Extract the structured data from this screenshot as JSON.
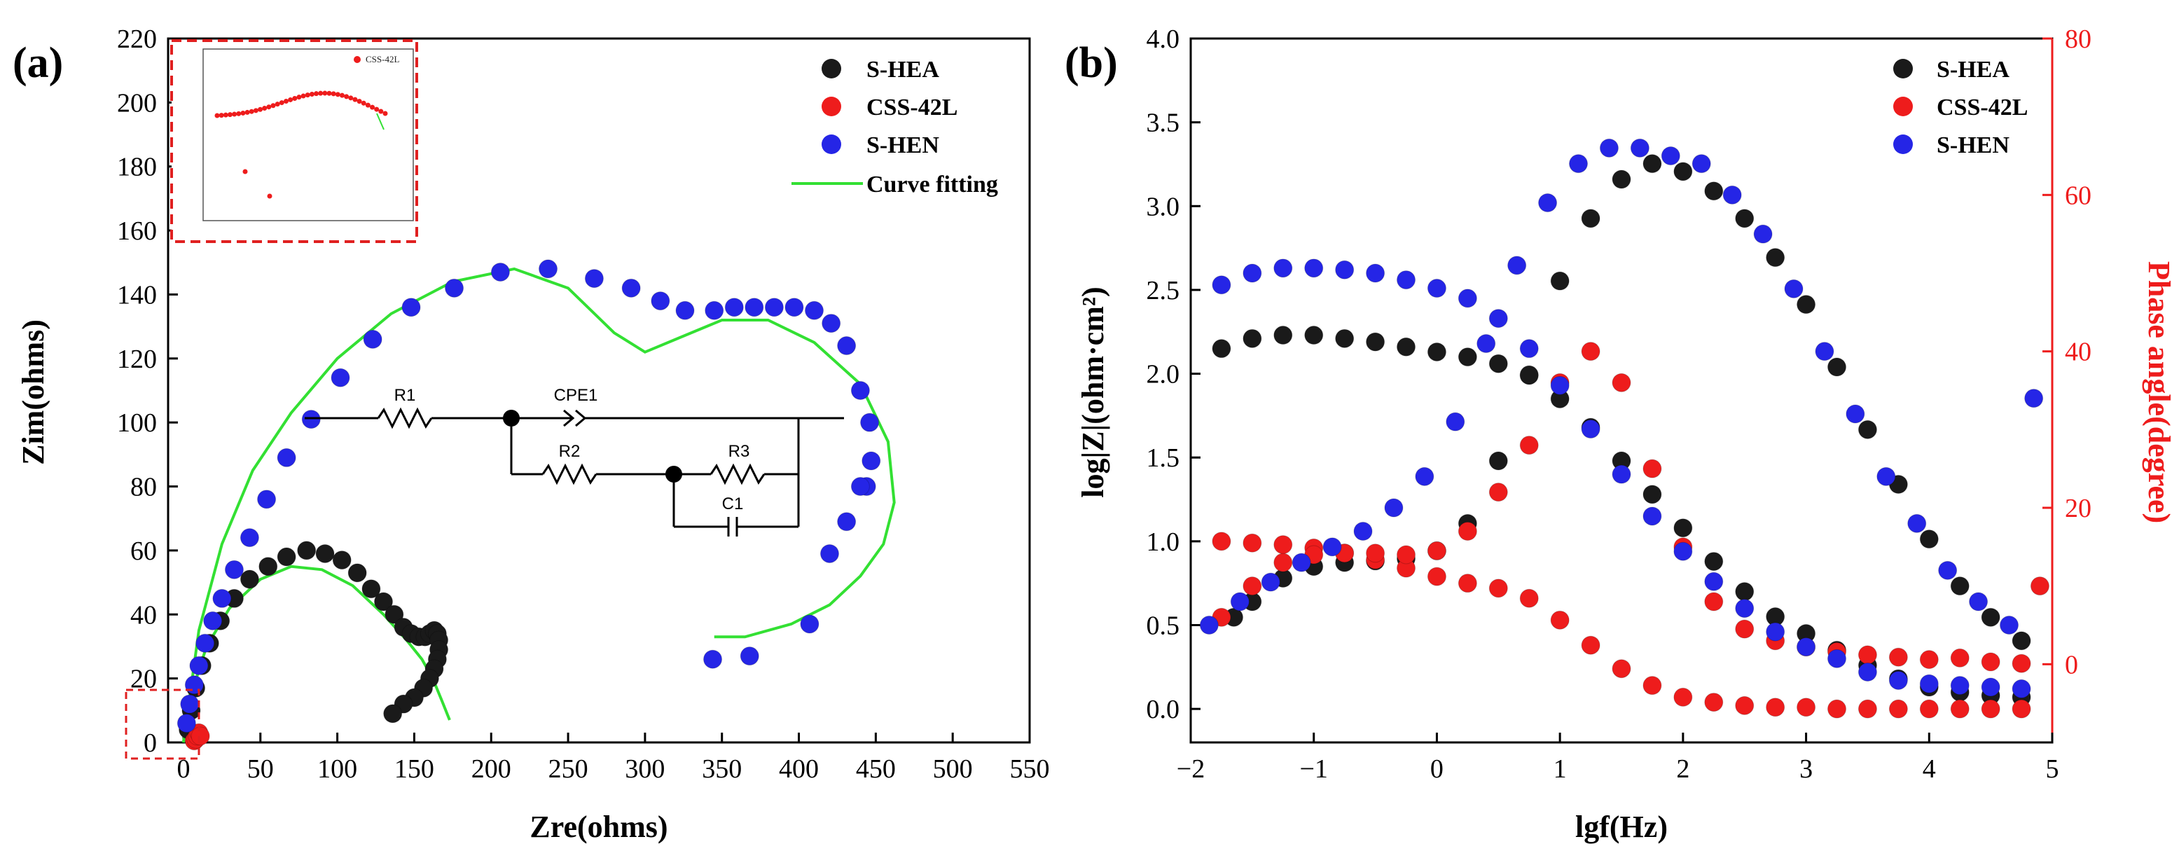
{
  "colors": {
    "s_hea": "#1a1a1a",
    "css_42l": "#ee1c1c",
    "s_hen": "#2525e6",
    "fit": "#33e033",
    "inset_border": "#e02020",
    "phase_axis": "#ee1c1c"
  },
  "panels": {
    "a": {
      "label": "(a)"
    },
    "b": {
      "label": "(b)"
    }
  },
  "circuit": {
    "r1": "R1",
    "cpe1": "CPE1",
    "r2": "R2",
    "r3": "R3",
    "c1": "C1"
  },
  "inset": {
    "legend": "CSS-42L"
  },
  "chart_data": [
    {
      "type": "scatter",
      "panel": "(a)",
      "xlabel": "Zre(ohms)",
      "ylabel": "Zim(ohms)",
      "xlim": [
        -10,
        550
      ],
      "ylim": [
        0,
        220
      ],
      "xticks": [
        0,
        50,
        100,
        150,
        200,
        250,
        300,
        350,
        400,
        450,
        500,
        550
      ],
      "yticks": [
        0,
        20,
        40,
        60,
        80,
        100,
        120,
        140,
        160,
        180,
        200,
        220
      ],
      "legend_position": "top-right",
      "series": [
        {
          "name": "S-HEA",
          "color": "#1a1a1a",
          "x": [
            3,
            5,
            8,
            12,
            17,
            24,
            33,
            43,
            55,
            67,
            80,
            92,
            103,
            113,
            122,
            130,
            137,
            143,
            148,
            153,
            157,
            160,
            163,
            165,
            166,
            166,
            165,
            163,
            160,
            156,
            150,
            143,
            136
          ],
          "y": [
            4,
            10,
            17,
            24,
            31,
            38,
            45,
            51,
            55,
            58,
            60,
            59,
            57,
            53,
            48,
            44,
            40,
            36,
            34,
            33,
            33,
            34,
            35,
            34,
            32,
            29,
            26,
            23,
            20,
            17,
            14,
            12,
            9
          ]
        },
        {
          "name": "CSS-42L",
          "color": "#ee1c1c",
          "x": [
            7,
            8,
            9,
            10,
            11
          ],
          "y": [
            0.5,
            1,
            2,
            3,
            2
          ]
        },
        {
          "name": "S-HEN",
          "color": "#2525e6",
          "x": [
            2,
            4,
            7,
            10,
            14,
            19,
            25,
            33,
            43,
            54,
            67,
            83,
            102,
            123,
            148,
            176,
            206,
            237,
            267,
            291,
            310,
            326,
            345,
            358,
            371,
            384,
            397,
            410,
            421,
            431,
            440,
            446,
            447,
            444,
            440,
            431,
            420,
            407,
            368,
            344
          ],
          "y": [
            6,
            12,
            18,
            24,
            31,
            38,
            45,
            54,
            64,
            76,
            89,
            101,
            114,
            126,
            136,
            142,
            147,
            148,
            145,
            142,
            138,
            135,
            135,
            136,
            136,
            136,
            136,
            135,
            131,
            124,
            110,
            100,
            88,
            80,
            80,
            69,
            59,
            37,
            27,
            26
          ]
        },
        {
          "name": "Curve fitting",
          "color": "#33e033",
          "kind": "line",
          "x": [
            0,
            5,
            15,
            30,
            50,
            70,
            90,
            110,
            130,
            145,
            155,
            162,
            168,
            173
          ],
          "y": [
            0,
            15,
            30,
            42,
            51,
            55,
            54,
            49,
            40,
            32,
            26,
            20,
            13,
            7
          ]
        },
        {
          "name": "Curve fitting",
          "color": "#33e033",
          "kind": "line",
          "x": [
            0,
            10,
            25,
            45,
            70,
            100,
            135,
            175,
            215,
            250,
            280,
            300,
            320,
            350,
            380,
            410,
            440,
            458,
            462,
            455,
            440,
            420,
            395,
            365,
            345
          ],
          "y": [
            0,
            35,
            62,
            85,
            103,
            120,
            134,
            144,
            148,
            142,
            128,
            122,
            126,
            132,
            132,
            125,
            112,
            94,
            75,
            62,
            52,
            43,
            37,
            33,
            33
          ]
        }
      ]
    },
    {
      "type": "scatter",
      "panel": "(b)",
      "xlabel": "lgf(Hz)",
      "ylabel": "log|Z|(ohm·cm²)",
      "y2label": "Phase angle(degree)",
      "xlim": [
        -2,
        5
      ],
      "ylim": [
        -0.2,
        4.0
      ],
      "y2lim": [
        -10,
        80
      ],
      "xticks": [
        -2,
        -1,
        0,
        1,
        2,
        3,
        4,
        5
      ],
      "yticks": [
        0.0,
        0.5,
        1.0,
        1.5,
        2.0,
        2.5,
        3.0,
        3.5,
        4.0
      ],
      "y2ticks": [
        0,
        20,
        40,
        60,
        80
      ],
      "legend_position": "top-right",
      "series": [
        {
          "name": "S-HEA",
          "color": "#1a1a1a",
          "axis": "left",
          "x": [
            -1.75,
            -1.5,
            -1.25,
            -1.0,
            -0.75,
            -0.5,
            -0.25,
            0.0,
            0.25,
            0.5,
            0.75,
            1.0,
            1.25,
            1.5,
            1.75,
            2.0,
            2.25,
            2.5,
            2.75,
            3.0,
            3.25,
            3.5,
            3.75,
            4.0,
            4.25,
            4.5,
            4.75
          ],
          "y": [
            2.15,
            2.21,
            2.23,
            2.23,
            2.21,
            2.19,
            2.16,
            2.13,
            2.1,
            2.06,
            1.99,
            1.85,
            1.68,
            1.48,
            1.28,
            1.08,
            0.88,
            0.7,
            0.55,
            0.45,
            0.35,
            0.26,
            0.18,
            0.13,
            0.1,
            0.08,
            0.07
          ]
        },
        {
          "name": "S-HEA",
          "color": "#1a1a1a",
          "axis": "right",
          "x": [
            -1.65,
            -1.5,
            -1.25,
            -1.0,
            -0.75,
            -0.5,
            -0.25,
            0.0,
            0.25,
            0.5,
            0.75,
            1.0,
            1.25,
            1.5,
            1.75,
            2.0,
            2.25,
            2.5,
            2.75,
            3.0,
            3.25,
            3.5,
            3.75,
            4.0,
            4.25,
            4.5,
            4.75
          ],
          "y": [
            6,
            8,
            11,
            12.5,
            13,
            13.2,
            13.5,
            14.5,
            18,
            26,
            37,
            49,
            57,
            62,
            64,
            63,
            60.5,
            57,
            52,
            46,
            38,
            30,
            23,
            16,
            10,
            6,
            3
          ]
        },
        {
          "name": "CSS-42L",
          "color": "#ee1c1c",
          "axis": "left",
          "x": [
            -1.75,
            -1.5,
            -1.25,
            -1.0,
            -0.75,
            -0.5,
            -0.25,
            0.0,
            0.25,
            0.5,
            0.75,
            1.0,
            1.25,
            1.5,
            1.75,
            2.0,
            2.25,
            2.5,
            2.75,
            3.0,
            3.25,
            3.5,
            3.75,
            4.0,
            4.25,
            4.5,
            4.75
          ],
          "y": [
            1.0,
            0.99,
            0.98,
            0.96,
            0.93,
            0.89,
            0.84,
            0.79,
            0.75,
            0.72,
            0.66,
            0.53,
            0.38,
            0.24,
            0.14,
            0.07,
            0.04,
            0.02,
            0.01,
            0.01,
            0.0,
            0.0,
            0.0,
            0.0,
            0.0,
            0.0,
            0.0
          ]
        },
        {
          "name": "CSS-42L",
          "color": "#ee1c1c",
          "axis": "right",
          "x": [
            -1.75,
            -1.5,
            -1.25,
            -1.0,
            -0.75,
            -0.5,
            -0.25,
            0.0,
            0.25,
            0.5,
            0.75,
            1.0,
            1.25,
            1.5,
            1.75,
            2.0,
            2.25,
            2.5,
            2.75,
            3.0,
            3.25,
            3.5,
            3.75,
            4.0,
            4.25,
            4.5,
            4.75,
            4.9
          ],
          "y": [
            6,
            10,
            13,
            14,
            14.2,
            14.2,
            14,
            14.5,
            17,
            22,
            28,
            36,
            40,
            36,
            25,
            15,
            8,
            4.5,
            3,
            2.2,
            1.6,
            1.2,
            0.9,
            0.6,
            0.8,
            0.3,
            0.1,
            10
          ]
        },
        {
          "name": "S-HEN",
          "color": "#2525e6",
          "axis": "left",
          "x": [
            -1.75,
            -1.5,
            -1.25,
            -1.0,
            -0.75,
            -0.5,
            -0.25,
            0.0,
            0.25,
            0.5,
            0.75,
            1.0,
            1.25,
            1.5,
            1.75,
            2.0,
            2.25,
            2.5,
            2.75,
            3.0,
            3.25,
            3.5,
            3.75,
            4.0,
            4.25,
            4.5,
            4.75
          ],
          "y": [
            2.53,
            2.6,
            2.63,
            2.63,
            2.62,
            2.6,
            2.56,
            2.51,
            2.45,
            2.33,
            2.15,
            1.93,
            1.67,
            1.4,
            1.15,
            0.94,
            0.76,
            0.6,
            0.46,
            0.37,
            0.3,
            0.22,
            0.17,
            0.15,
            0.14,
            0.13,
            0.12
          ]
        },
        {
          "name": "S-HEN",
          "color": "#2525e6",
          "axis": "right",
          "x": [
            -1.85,
            -1.6,
            -1.35,
            -1.1,
            -0.85,
            -0.6,
            -0.35,
            -0.1,
            0.15,
            0.4,
            0.65,
            0.9,
            1.15,
            1.4,
            1.65,
            1.9,
            2.15,
            2.4,
            2.65,
            2.9,
            3.15,
            3.4,
            3.65,
            3.9,
            4.15,
            4.4,
            4.65,
            4.85
          ],
          "y": [
            5,
            8,
            10.5,
            13,
            15,
            17,
            20,
            24,
            31,
            41,
            51,
            59,
            64,
            66,
            66,
            65,
            64,
            60,
            55,
            48,
            40,
            32,
            24,
            18,
            12,
            8,
            5,
            34
          ]
        }
      ]
    }
  ]
}
